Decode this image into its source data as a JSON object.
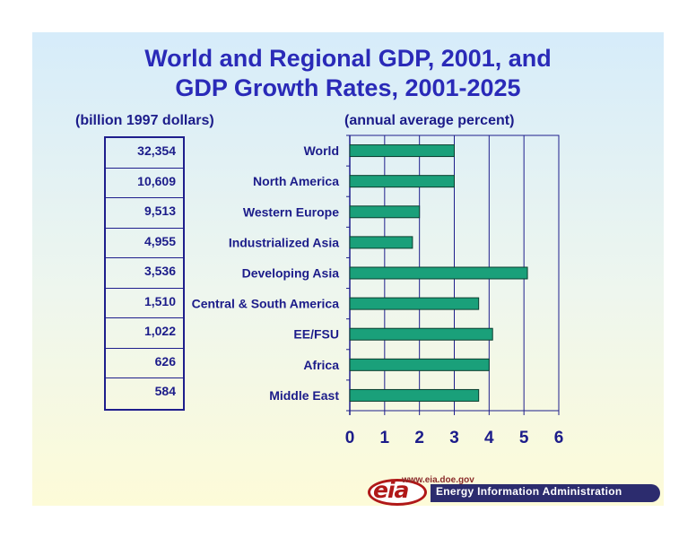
{
  "title_line1": "World and Regional GDP, 2001, and",
  "title_line2": "GDP Growth Rates, 2001-2025",
  "left_subhead": "(billion 1997 dollars)",
  "right_subhead": "(annual average percent)",
  "gdp_values": [
    "32,354",
    "10,609",
    "9,513",
    "4,955",
    "3,536",
    "1,510",
    "1,022",
    "626",
    "584"
  ],
  "chart_data": {
    "type": "bar",
    "orientation": "horizontal",
    "categories": [
      "World",
      "North America",
      "Western Europe",
      "Industrialized Asia",
      "Developing Asia",
      "Central & South America",
      "EE/FSU",
      "Africa",
      "Middle East"
    ],
    "values": [
      3.0,
      3.0,
      2.0,
      1.8,
      5.1,
      3.7,
      4.1,
      4.0,
      3.7
    ],
    "xlim": [
      0,
      6
    ],
    "xticks": [
      "0",
      "1",
      "2",
      "3",
      "4",
      "5",
      "6"
    ],
    "grid": "vertical",
    "bar_color": "#1aa07a"
  },
  "logo": {
    "word": "eia",
    "url": "www.eia.doe.gov",
    "name": "Energy Information Administration"
  },
  "colors": {
    "title": "#2a2ab8",
    "text": "#1c1c8a",
    "brand_red": "#b01818"
  }
}
